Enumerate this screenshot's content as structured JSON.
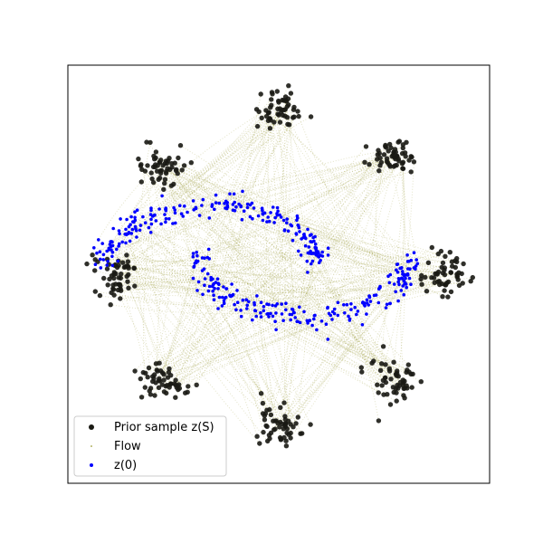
{
  "chart_data": {
    "type": "scatter",
    "title": "",
    "xlabel": "",
    "ylabel": "",
    "xlim": [
      -1,
      1
    ],
    "ylim": [
      -1,
      1
    ],
    "ticks": "none",
    "grid": false,
    "legend_position": "lower-left",
    "series": [
      {
        "name": "Prior sample z(S)",
        "marker": "filled circle",
        "color": "#1a1a14",
        "description_of_distribution": "8 gaussian clusters arranged in a ring",
        "cluster_centers": [
          {
            "x": 0.0,
            "y": 0.79
          },
          {
            "x": 0.55,
            "y": 0.56
          },
          {
            "x": 0.79,
            "y": 0.0
          },
          {
            "x": 0.55,
            "y": -0.52
          },
          {
            "x": 0.0,
            "y": -0.72
          },
          {
            "x": -0.55,
            "y": -0.52
          },
          {
            "x": -0.77,
            "y": 0.0
          },
          {
            "x": -0.55,
            "y": 0.52
          }
        ]
      },
      {
        "name": "Flow",
        "marker": "tiny dots / trajectories",
        "color": "#808000"
      },
      {
        "name": "z(0)",
        "marker": "small filled circle",
        "color": "#0000ff",
        "description_of_distribution": "two interleaved crescent (moon) arcs"
      }
    ]
  },
  "legend": {
    "items": [
      {
        "label": "Prior sample z(S)"
      },
      {
        "label": "Flow"
      },
      {
        "label": "z(0)"
      }
    ]
  }
}
